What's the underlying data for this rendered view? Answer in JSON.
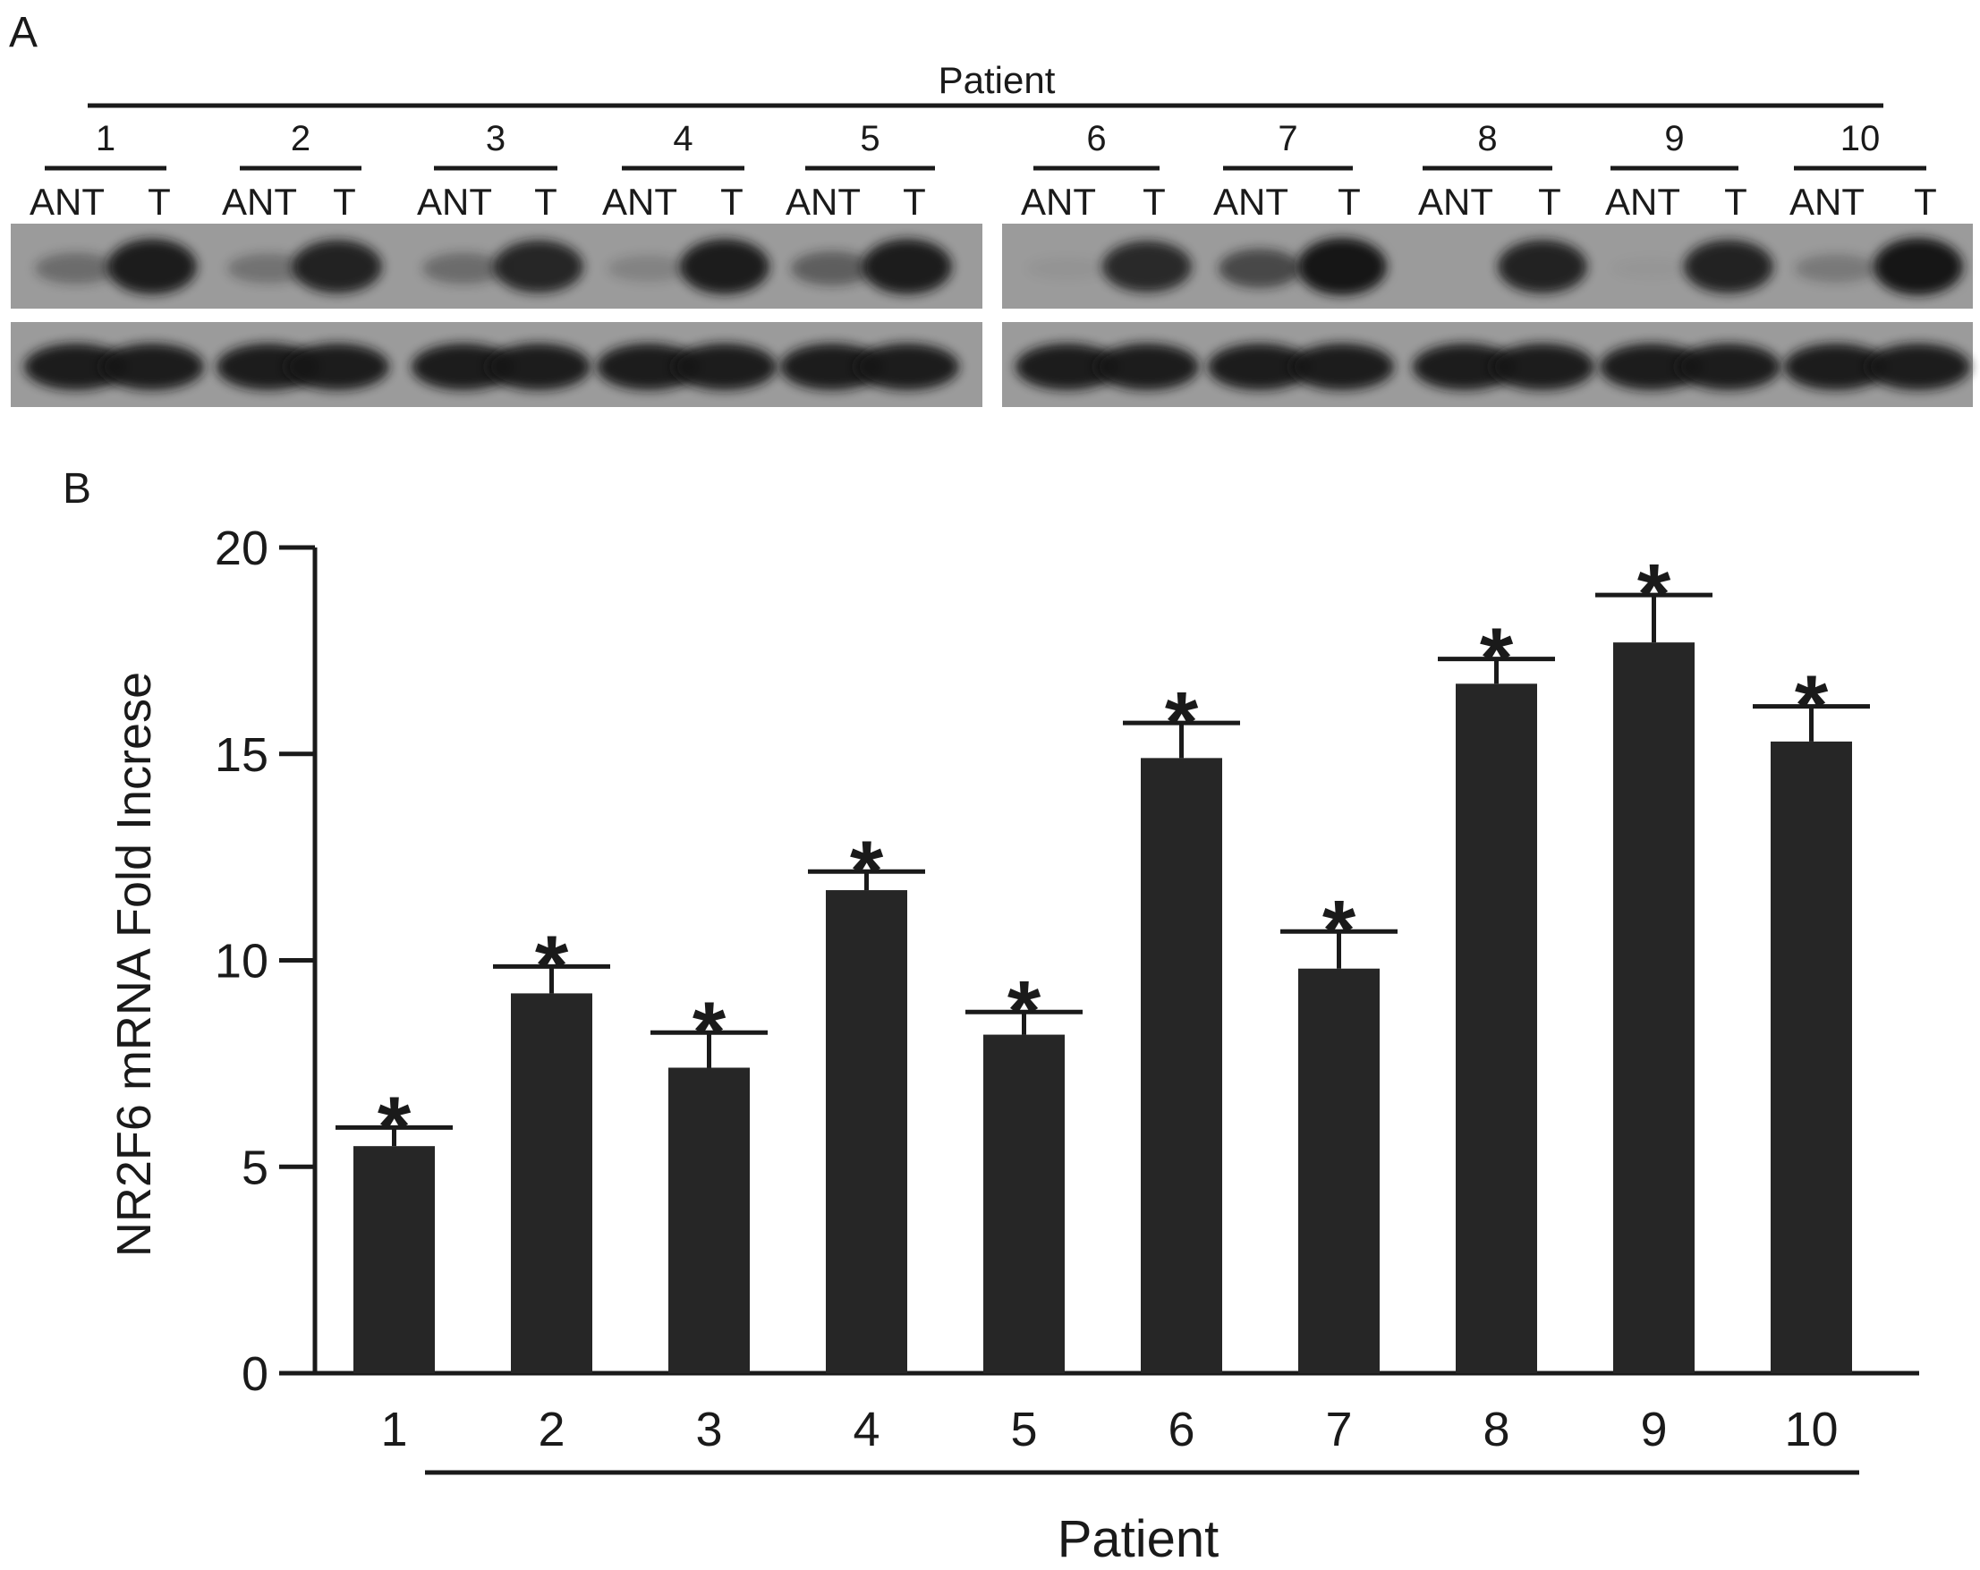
{
  "panel_a": {
    "label": "A",
    "header": "Patient",
    "patients": [
      "1",
      "2",
      "3",
      "4",
      "5",
      "6",
      "7",
      "8",
      "9",
      "10"
    ],
    "lane_labels": [
      "ANT",
      "T"
    ],
    "band_intensity_top": [
      [
        0.35,
        0.95
      ],
      [
        0.3,
        0.9
      ],
      [
        0.35,
        0.88
      ],
      [
        0.18,
        0.95
      ],
      [
        0.45,
        0.95
      ],
      [
        0.05,
        0.85
      ],
      [
        0.62,
        1.0
      ],
      [
        0.0,
        0.9
      ],
      [
        0.03,
        0.9
      ],
      [
        0.25,
        1.0
      ]
    ],
    "colors": {
      "blot_background": "#9b9b9b",
      "band": "#121212"
    }
  },
  "panel_b": {
    "label": "B"
  },
  "chart_data": {
    "type": "bar",
    "categories": [
      "1",
      "2",
      "3",
      "4",
      "5",
      "6",
      "7",
      "8",
      "9",
      "10"
    ],
    "values": [
      5.5,
      9.2,
      7.4,
      11.7,
      8.2,
      14.9,
      9.8,
      16.7,
      17.7,
      15.3
    ],
    "error": [
      0.45,
      0.65,
      0.85,
      0.45,
      0.55,
      0.85,
      0.9,
      0.6,
      1.15,
      0.85
    ],
    "significance": [
      "*",
      "*",
      "*",
      "*",
      "*",
      "*",
      "*",
      "*",
      "*",
      "*"
    ],
    "xlabel": "Patient",
    "ylabel": "NR2F6 mRNA  Fold Increse",
    "ylim": [
      0,
      20
    ],
    "yticks": [
      0,
      5,
      10,
      15,
      20
    ],
    "grid": false,
    "bar_color": "#262626"
  }
}
